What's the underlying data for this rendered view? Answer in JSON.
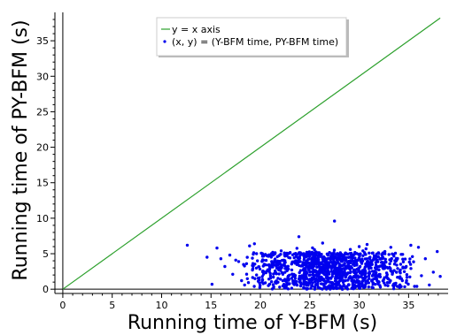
{
  "chart_data": {
    "type": "scatter",
    "title": "",
    "xlabel": "Running time of Y-BFM (s)",
    "ylabel": "Running time of PY-BFM (s)",
    "xlim": [
      -0.8,
      39
    ],
    "ylim": [
      -0.6,
      39
    ],
    "xticks": [
      0,
      5,
      10,
      15,
      20,
      25,
      30,
      35
    ],
    "yticks": [
      0,
      5,
      10,
      15,
      20,
      25,
      30,
      35
    ],
    "xtick_labels": [
      "0",
      "5",
      "10",
      "15",
      "20",
      "25",
      "30",
      "35"
    ],
    "ytick_labels": [
      "0",
      "5",
      "10",
      "15",
      "20",
      "25",
      "30",
      "35"
    ],
    "grid": false,
    "legend_position": "top-center",
    "colors": {
      "line": "#2ca02c",
      "points": "#0000ee",
      "axis": "#000000"
    },
    "series": [
      {
        "name": "y = x axis",
        "type": "line",
        "legend_label": "y = x axis",
        "x": [
          0,
          38.2
        ],
        "y": [
          0,
          38.2
        ]
      },
      {
        "name": "(x, y) = (Y-BFM time, PY-BFM time)",
        "type": "scatter",
        "legend_label": "(x, y) = (Y-BFM time, PY-BFM time)",
        "points": [
          [
            12.6,
            6.2
          ],
          [
            14.6,
            4.5
          ],
          [
            15.1,
            0.7
          ],
          [
            15.6,
            5.8
          ],
          [
            16.0,
            4.3
          ],
          [
            16.4,
            3.2
          ],
          [
            16.9,
            4.8
          ],
          [
            17.2,
            2.1
          ],
          [
            17.5,
            4.1
          ],
          [
            17.8,
            3.9
          ],
          [
            18.1,
            1.2
          ],
          [
            18.4,
            0.6
          ],
          [
            18.6,
            3.6
          ],
          [
            18.9,
            6.1
          ],
          [
            19.2,
            2.7
          ],
          [
            19.4,
            6.4
          ],
          [
            19.7,
            4.0
          ],
          [
            19.9,
            1.6
          ],
          [
            20.2,
            5.0
          ],
          [
            20.5,
            0.9
          ],
          [
            20.8,
            3.4
          ],
          [
            21.0,
            2.2
          ],
          [
            21.3,
            4.8
          ],
          [
            21.6,
            1.0
          ],
          [
            21.9,
            3.0
          ],
          [
            22.1,
            5.4
          ],
          [
            22.4,
            0.4
          ],
          [
            22.7,
            2.6
          ],
          [
            23.0,
            4.4
          ],
          [
            23.3,
            1.8
          ],
          [
            23.6,
            3.7
          ],
          [
            23.9,
            7.4
          ],
          [
            24.1,
            0.6
          ],
          [
            24.4,
            2.9
          ],
          [
            24.7,
            5.2
          ],
          [
            25.0,
            1.4
          ],
          [
            25.2,
            3.9
          ],
          [
            25.5,
            0.3
          ],
          [
            25.8,
            2.4
          ],
          [
            26.1,
            4.6
          ],
          [
            26.3,
            6.5
          ],
          [
            26.6,
            1.1
          ],
          [
            26.9,
            3.3
          ],
          [
            27.2,
            5.0
          ],
          [
            27.5,
            9.6
          ],
          [
            27.7,
            0.8
          ],
          [
            28.0,
            2.8
          ],
          [
            28.3,
            4.3
          ],
          [
            28.6,
            1.7
          ],
          [
            28.9,
            3.6
          ],
          [
            29.1,
            5.6
          ],
          [
            29.4,
            0.5
          ],
          [
            29.7,
            2.3
          ],
          [
            30.0,
            6.0
          ],
          [
            30.3,
            4.0
          ],
          [
            30.5,
            1.3
          ],
          [
            30.8,
            6.3
          ],
          [
            31.1,
            3.1
          ],
          [
            31.4,
            0.9
          ],
          [
            31.7,
            4.7
          ],
          [
            32.0,
            2.0
          ],
          [
            32.3,
            3.8
          ],
          [
            32.6,
            5.3
          ],
          [
            32.9,
            1.5
          ],
          [
            33.2,
            5.9
          ],
          [
            33.5,
            0.7
          ],
          [
            33.8,
            3.4
          ],
          [
            34.1,
            2.5
          ],
          [
            34.4,
            4.9
          ],
          [
            34.8,
            1.2
          ],
          [
            35.2,
            3.5
          ],
          [
            35.6,
            0.4
          ],
          [
            36.0,
            5.9
          ],
          [
            36.3,
            1.9
          ],
          [
            36.7,
            4.3
          ],
          [
            37.1,
            0.6
          ],
          [
            37.5,
            2.4
          ],
          [
            37.9,
            5.3
          ],
          [
            38.2,
            1.8
          ]
        ]
      }
    ]
  }
}
